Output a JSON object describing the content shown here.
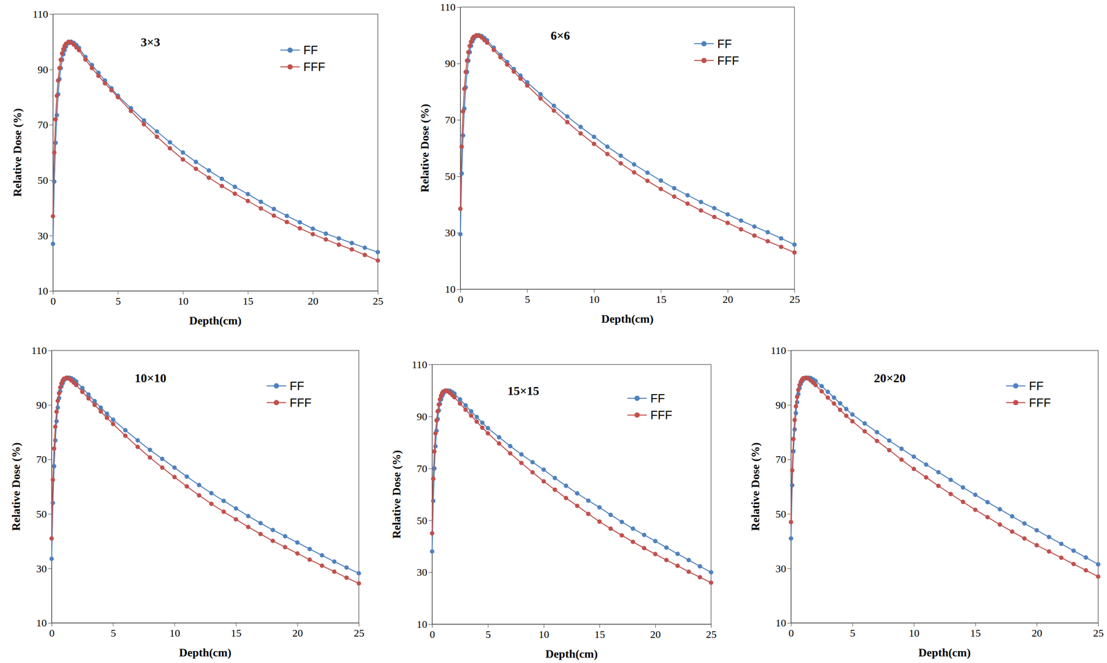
{
  "chart_data": [
    {
      "type": "line",
      "title": "3×3",
      "x_label": "Depth(cm)",
      "y_label": "Relative Dose (%)",
      "x": [
        0,
        0.1,
        0.2,
        0.3,
        0.4,
        0.5,
        0.6,
        0.7,
        0.8,
        0.9,
        1,
        1.2,
        1.4,
        1.6,
        1.8,
        2,
        2.5,
        3,
        3.5,
        4,
        4.5,
        5,
        6,
        7,
        8,
        9,
        10,
        11,
        12,
        13,
        14,
        15,
        16,
        17,
        18,
        19,
        20,
        21,
        22,
        23,
        24,
        25
      ],
      "xlim": [
        0,
        25
      ],
      "xticks": [
        0,
        5,
        10,
        15,
        20,
        25
      ],
      "ylim": [
        10,
        110
      ],
      "yticks": [
        10,
        30,
        50,
        70,
        90,
        110
      ],
      "grid": false,
      "legend": "upper right",
      "series": [
        {
          "name": "FF",
          "color": "#4f81bd",
          "marker": "circle",
          "values": [
            27,
            49.5,
            63.5,
            73.5,
            81,
            86.5,
            90.5,
            93.5,
            95.5,
            97,
            98.3,
            99.5,
            100,
            99.6,
            98.8,
            97.8,
            94.5,
            91.6,
            88.8,
            86,
            83.2,
            80.5,
            76,
            71.6,
            67.6,
            63.7,
            60,
            56.6,
            53.5,
            50.5,
            47.6,
            45,
            42.2,
            39.6,
            37.1,
            34.8,
            32.5,
            30.7,
            29,
            27.3,
            25.6,
            24
          ]
        },
        {
          "name": "FFF",
          "color": "#c0504d",
          "marker": "circle",
          "values": [
            37,
            60,
            72,
            80.5,
            86,
            90.5,
            93.5,
            95.8,
            97.3,
            98.5,
            99.3,
            100,
            99.7,
            99,
            98,
            97,
            93.6,
            90.5,
            87.7,
            85,
            82.5,
            80,
            75,
            70.2,
            65.7,
            61.5,
            57.5,
            54.1,
            50.9,
            47.9,
            45.1,
            42.5,
            39.8,
            37.2,
            34.9,
            32.6,
            30.5,
            28.6,
            26.7,
            25,
            23,
            21
          ]
        }
      ]
    },
    {
      "type": "line",
      "title": "6×6",
      "x_label": "Depth(cm)",
      "y_label": "Relative Dose (%)",
      "x": [
        0,
        0.1,
        0.2,
        0.3,
        0.4,
        0.5,
        0.6,
        0.7,
        0.8,
        0.9,
        1,
        1.2,
        1.4,
        1.6,
        1.8,
        2,
        2.5,
        3,
        3.5,
        4,
        4.5,
        5,
        6,
        7,
        8,
        9,
        10,
        11,
        12,
        13,
        14,
        15,
        16,
        17,
        18,
        19,
        20,
        21,
        22,
        23,
        24,
        25
      ],
      "xlim": [
        0,
        25
      ],
      "xticks": [
        0,
        5,
        10,
        15,
        20,
        25
      ],
      "ylim": [
        10,
        110
      ],
      "yticks": [
        10,
        30,
        50,
        70,
        90,
        110
      ],
      "grid": false,
      "legend": "upper right",
      "series": [
        {
          "name": "FF",
          "color": "#4f81bd",
          "marker": "circle",
          "values": [
            29.5,
            51,
            64.5,
            74,
            81.5,
            87,
            91,
            94,
            96.3,
            97.8,
            98.8,
            99.7,
            100,
            99.7,
            99,
            98.2,
            95.6,
            93,
            90.5,
            88,
            85.7,
            83.3,
            79.1,
            75,
            71.2,
            67.5,
            64,
            60.5,
            57.3,
            54.2,
            51.3,
            48.5,
            45.8,
            43.3,
            40.9,
            38.7,
            36.5,
            34.3,
            32.2,
            30.2,
            28,
            25.8
          ]
        },
        {
          "name": "FFF",
          "color": "#c0504d",
          "marker": "circle",
          "values": [
            38.5,
            60.5,
            73,
            81,
            87,
            91,
            94,
            96.2,
            97.7,
            98.8,
            99.5,
            100,
            99.8,
            99.2,
            98.3,
            97.4,
            94.8,
            92.2,
            89.6,
            87.1,
            84.6,
            82.2,
            77.6,
            73.3,
            69.2,
            65.2,
            61.5,
            57.9,
            54.6,
            51.4,
            48.4,
            45.5,
            42.8,
            40.3,
            37.9,
            35.6,
            33.5,
            31.2,
            29,
            27,
            25,
            23
          ]
        }
      ]
    },
    {
      "type": "line",
      "title": "10×10",
      "x_label": "Depth(cm)",
      "y_label": "Relative Dose (%)",
      "x": [
        0,
        0.1,
        0.2,
        0.3,
        0.4,
        0.5,
        0.6,
        0.7,
        0.8,
        0.9,
        1,
        1.2,
        1.4,
        1.6,
        1.8,
        2,
        2.5,
        3,
        3.5,
        4,
        4.5,
        5,
        6,
        7,
        8,
        9,
        10,
        11,
        12,
        13,
        14,
        15,
        16,
        17,
        18,
        19,
        20,
        21,
        22,
        23,
        24,
        25
      ],
      "xlim": [
        0,
        25
      ],
      "xticks": [
        0,
        5,
        10,
        15,
        20,
        25
      ],
      "ylim": [
        10,
        110
      ],
      "yticks": [
        10,
        30,
        50,
        70,
        90,
        110
      ],
      "grid": false,
      "legend": "upper right",
      "series": [
        {
          "name": "FF",
          "color": "#4f81bd",
          "marker": "circle",
          "values": [
            33.5,
            54,
            67.5,
            77,
            84,
            89,
            92.5,
            95,
            96.8,
            98,
            99,
            99.7,
            100,
            99.8,
            99.3,
            98.6,
            96.2,
            93.8,
            91.4,
            89,
            86.8,
            84.6,
            80.7,
            77,
            73.5,
            70.2,
            67,
            63.7,
            60.6,
            57.6,
            54.8,
            52,
            49.2,
            46.6,
            44.1,
            41.8,
            39.5,
            37.1,
            34.8,
            32.5,
            30.3,
            28.2
          ]
        },
        {
          "name": "FFF",
          "color": "#c0504d",
          "marker": "circle",
          "values": [
            41,
            62.5,
            74,
            82,
            87.5,
            91.5,
            94.3,
            96.4,
            97.9,
            98.9,
            99.6,
            100,
            99.7,
            99,
            98.2,
            97.3,
            94.8,
            92.4,
            90,
            87.6,
            85.3,
            83,
            78.7,
            74.6,
            70.7,
            67,
            63.5,
            60.1,
            56.8,
            53.7,
            50.8,
            48,
            45.2,
            42.6,
            40.1,
            37.8,
            35.5,
            33.2,
            31,
            28.8,
            26.6,
            24.5
          ]
        }
      ]
    },
    {
      "type": "line",
      "title": "15×15",
      "x_label": "Depth(cm)",
      "y_label": "Relative Dose (%)",
      "x": [
        0,
        0.1,
        0.2,
        0.3,
        0.4,
        0.5,
        0.6,
        0.7,
        0.8,
        0.9,
        1,
        1.2,
        1.4,
        1.6,
        1.8,
        2,
        2.5,
        3,
        3.5,
        4,
        4.5,
        5,
        6,
        7,
        8,
        9,
        10,
        11,
        12,
        13,
        14,
        15,
        16,
        17,
        18,
        19,
        20,
        21,
        22,
        23,
        24,
        25
      ],
      "xlim": [
        0,
        25
      ],
      "xticks": [
        0,
        5,
        10,
        15,
        20,
        25
      ],
      "ylim": [
        10,
        110
      ],
      "yticks": [
        10,
        30,
        50,
        70,
        90,
        110
      ],
      "grid": false,
      "legend": "upper right",
      "series": [
        {
          "name": "FF",
          "color": "#4f81bd",
          "marker": "circle",
          "values": [
            38,
            57.5,
            70,
            78.5,
            84.5,
            89,
            92.3,
            94.8,
            96.6,
            97.9,
            98.8,
            99.7,
            100,
            99.9,
            99.4,
            98.8,
            96.6,
            94.3,
            92,
            89.8,
            87.6,
            85.5,
            82,
            78.6,
            75.4,
            72.4,
            69.5,
            66.3,
            63.3,
            60.4,
            57.6,
            55,
            52.1,
            49.4,
            46.8,
            44.4,
            42,
            39.5,
            37.1,
            34.7,
            32.3,
            30
          ]
        },
        {
          "name": "FFF",
          "color": "#c0504d",
          "marker": "circle",
          "values": [
            45,
            66,
            76.5,
            83.5,
            88.5,
            92,
            94.6,
            96.6,
            98,
            99,
            99.6,
            100,
            99.7,
            99.1,
            98.3,
            97.4,
            95,
            92.6,
            90.3,
            88,
            85.7,
            83.5,
            79.6,
            75.8,
            72.1,
            68.5,
            65,
            61.8,
            58.6,
            55.6,
            52.5,
            49.5,
            46.8,
            44.2,
            41.7,
            39.3,
            37,
            34.7,
            32.5,
            30.2,
            28.1,
            26
          ]
        }
      ]
    },
    {
      "type": "line",
      "title": "20×20",
      "x_label": "Depth(cm)",
      "y_label": "Relative Dose (%)",
      "x": [
        0,
        0.1,
        0.2,
        0.3,
        0.4,
        0.5,
        0.6,
        0.7,
        0.8,
        0.9,
        1,
        1.2,
        1.4,
        1.6,
        1.8,
        2,
        2.5,
        3,
        3.5,
        4,
        4.5,
        5,
        6,
        7,
        8,
        9,
        10,
        11,
        12,
        13,
        14,
        15,
        16,
        17,
        18,
        19,
        20,
        21,
        22,
        23,
        24,
        25
      ],
      "xlim": [
        0,
        25
      ],
      "xticks": [
        0,
        5,
        10,
        15,
        20,
        25
      ],
      "ylim": [
        10,
        110
      ],
      "yticks": [
        10,
        30,
        50,
        70,
        90,
        110
      ],
      "grid": false,
      "legend": "upper right",
      "series": [
        {
          "name": "FF",
          "color": "#4f81bd",
          "marker": "circle",
          "values": [
            41,
            60.5,
            73,
            81,
            87,
            91,
            94,
            96.2,
            97.7,
            98.7,
            99.3,
            99.8,
            100,
            99.9,
            99.4,
            98.8,
            96.9,
            94.8,
            92.7,
            90.6,
            88.5,
            86.5,
            83.2,
            80,
            76.9,
            73.9,
            71,
            68.1,
            65.3,
            62.5,
            59.7,
            57,
            54.3,
            51.7,
            49.1,
            46.5,
            44,
            41.5,
            39,
            36.5,
            34,
            31.5
          ]
        },
        {
          "name": "FFF",
          "color": "#c0504d",
          "marker": "circle",
          "values": [
            47,
            66,
            77.5,
            84.5,
            89.5,
            93,
            95.5,
            97.3,
            98.5,
            99.3,
            99.8,
            100,
            99.7,
            99,
            98.2,
            97.3,
            95,
            92.7,
            90.5,
            88.2,
            86,
            84,
            80.3,
            76.8,
            73.4,
            69.9,
            66.5,
            63.4,
            60.3,
            57.3,
            54.4,
            51.5,
            48.8,
            46.1,
            43.5,
            41,
            38.5,
            36.2,
            33.9,
            31.6,
            29.3,
            27
          ]
        }
      ]
    }
  ]
}
